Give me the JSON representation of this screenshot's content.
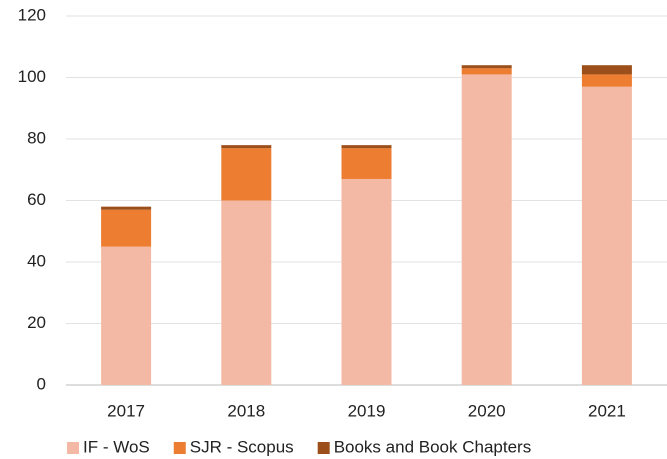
{
  "chart_data": {
    "type": "stacked_bar",
    "categories": [
      "2017",
      "2018",
      "2019",
      "2020",
      "2021"
    ],
    "series": [
      {
        "name": "IF - WoS",
        "color": "#f4b9a4",
        "values": [
          45,
          60,
          67,
          101,
          97
        ]
      },
      {
        "name": "SJR - Scopus",
        "color": "#ed7d31",
        "values": [
          12,
          17,
          10,
          2,
          4
        ]
      },
      {
        "name": "Books and Book Chapters",
        "color": "#9c4f1a",
        "values": [
          1,
          1,
          1,
          1,
          3
        ]
      }
    ],
    "ylim": [
      0,
      120
    ],
    "yticks": [
      0,
      20,
      40,
      60,
      80,
      100,
      120
    ],
    "grid": true,
    "legend": "bottom"
  }
}
